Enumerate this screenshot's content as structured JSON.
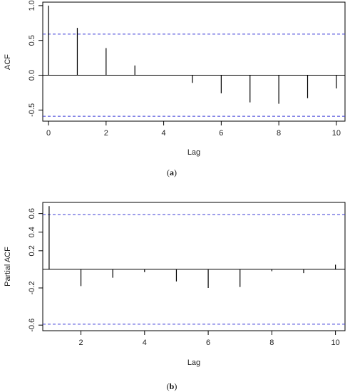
{
  "chart_data": [
    {
      "type": "bar",
      "panel_label": "a",
      "xlabel": "Lag",
      "ylabel": "ACF",
      "x": [
        0,
        1,
        2,
        3,
        4,
        5,
        6,
        7,
        8,
        9,
        10
      ],
      "values": [
        1.0,
        0.68,
        0.39,
        0.14,
        0.005,
        -0.11,
        -0.26,
        -0.39,
        -0.41,
        -0.33,
        -0.19
      ],
      "confidence_bound": 0.59,
      "xlim": [
        -0.2,
        10.3
      ],
      "ylim": [
        -0.66,
        1.05
      ],
      "xticks": [
        0,
        2,
        4,
        6,
        8,
        10
      ],
      "yticks": [
        -0.5,
        0.0,
        0.5,
        1.0
      ],
      "ytick_labels": [
        "-0.5",
        "0.0",
        "0.5",
        "1.0"
      ],
      "zero_line": true,
      "grid": false,
      "colors": {
        "bars": "#000000",
        "bound": "#3b3bd6",
        "frame": "#000000"
      }
    },
    {
      "type": "bar",
      "panel_label": "b",
      "xlabel": "Lag",
      "ylabel": "Partial ACF",
      "x": [
        1,
        2,
        3,
        4,
        5,
        6,
        7,
        8,
        9,
        10
      ],
      "values": [
        0.68,
        -0.18,
        -0.09,
        -0.03,
        -0.13,
        -0.2,
        -0.19,
        -0.02,
        -0.04,
        0.05
      ],
      "confidence_bound": 0.59,
      "xlim": [
        0.8,
        10.3
      ],
      "ylim": [
        -0.66,
        0.72
      ],
      "xticks": [
        2,
        4,
        6,
        8,
        10
      ],
      "yticks": [
        -0.6,
        -0.2,
        0.2,
        0.4,
        0.6
      ],
      "ytick_labels": [
        "-0.6",
        "-0.2",
        "0.2",
        "0.4",
        "0.6"
      ],
      "zero_line": true,
      "grid": false,
      "colors": {
        "bars": "#000000",
        "bound": "#3b3bd6",
        "frame": "#000000"
      }
    }
  ]
}
